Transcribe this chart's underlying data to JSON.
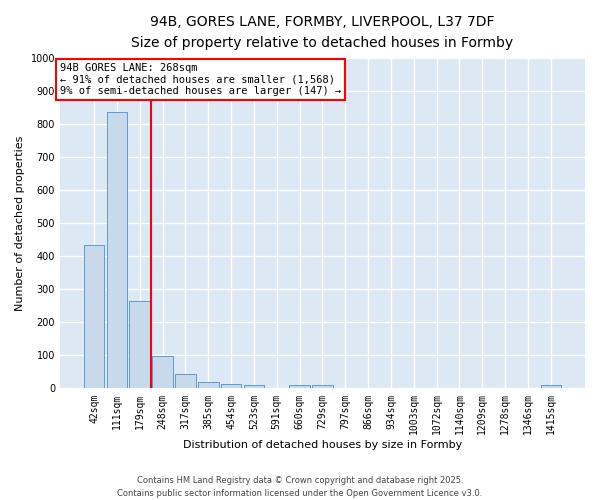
{
  "title": "94B, GORES LANE, FORMBY, LIVERPOOL, L37 7DF",
  "subtitle": "Size of property relative to detached houses in Formby",
  "xlabel": "Distribution of detached houses by size in Formby",
  "ylabel": "Number of detached properties",
  "categories": [
    "42sqm",
    "111sqm",
    "179sqm",
    "248sqm",
    "317sqm",
    "385sqm",
    "454sqm",
    "523sqm",
    "591sqm",
    "660sqm",
    "729sqm",
    "797sqm",
    "866sqm",
    "934sqm",
    "1003sqm",
    "1072sqm",
    "1140sqm",
    "1209sqm",
    "1278sqm",
    "1346sqm",
    "1415sqm"
  ],
  "values": [
    435,
    835,
    265,
    97,
    45,
    20,
    12,
    10,
    0,
    10,
    10,
    0,
    0,
    0,
    0,
    0,
    0,
    0,
    0,
    0,
    10
  ],
  "bar_color": "#c9d9ec",
  "bar_edge_color": "#5b9bd5",
  "vline_x_index": 3,
  "vline_color": "red",
  "annotation_text": "94B GORES LANE: 268sqm\n← 91% of detached houses are smaller (1,568)\n9% of semi-detached houses are larger (147) →",
  "annotation_box_color": "white",
  "annotation_box_edge_color": "red",
  "ylim": [
    0,
    1000
  ],
  "yticks": [
    0,
    100,
    200,
    300,
    400,
    500,
    600,
    700,
    800,
    900,
    1000
  ],
  "background_color": "#dde8f5",
  "grid_color": "white",
  "footer": "Contains HM Land Registry data © Crown copyright and database right 2025.\nContains public sector information licensed under the Open Government Licence v3.0.",
  "title_fontsize": 10,
  "subtitle_fontsize": 9,
  "axis_label_fontsize": 8,
  "tick_fontsize": 7,
  "annotation_fontsize": 7.5
}
